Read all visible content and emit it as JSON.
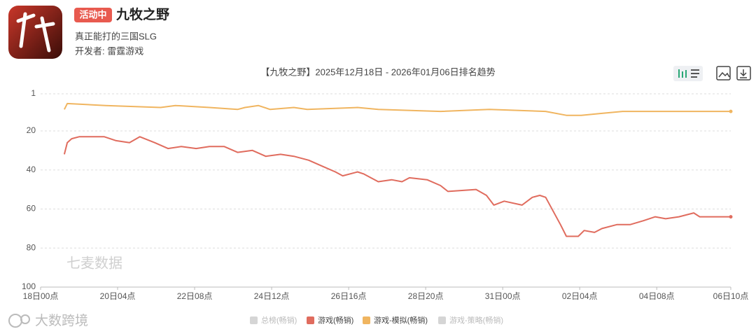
{
  "header": {
    "badge": "活动中",
    "app_name": "九牧之野",
    "slogan": "真正能打的三国SLG",
    "developer": "开发者: 雷霆游戏"
  },
  "chart_data": {
    "type": "line",
    "title": "【九牧之野】2025年12月18日 - 2026年01月06日排名趋势",
    "y_inverted": true,
    "grid": true,
    "xlim": [
      0,
      466
    ],
    "ylim": [
      1,
      100
    ],
    "xticks": [
      {
        "value": 0,
        "label": "18日00点"
      },
      {
        "value": 52,
        "label": "20日04点"
      },
      {
        "value": 104,
        "label": "22日08点"
      },
      {
        "value": 156,
        "label": "24日12点"
      },
      {
        "value": 208,
        "label": "26日16点"
      },
      {
        "value": 260,
        "label": "28日20点"
      },
      {
        "value": 312,
        "label": "31日00点"
      },
      {
        "value": 364,
        "label": "02日04点"
      },
      {
        "value": 416,
        "label": "04日08点"
      },
      {
        "value": 466,
        "label": "06日10点"
      }
    ],
    "yticks": [
      1,
      20,
      40,
      60,
      80,
      100
    ],
    "series": [
      {
        "name": "总榜(畅销)",
        "color": "#cccccc",
        "hidden": true
      },
      {
        "name": "游戏(畅销)",
        "color": "#e06c5e",
        "x": [
          16,
          18,
          21,
          26,
          43,
          51,
          60,
          67,
          77,
          86,
          95,
          105,
          114,
          124,
          133,
          143,
          152,
          162,
          171,
          181,
          190,
          199,
          204,
          214,
          218,
          228,
          237,
          244,
          249,
          261,
          270,
          275,
          294,
          301,
          306,
          313,
          325,
          332,
          337,
          341,
          346,
          351,
          355,
          363,
          367,
          374,
          379,
          389,
          398,
          407,
          415,
          422,
          431,
          441,
          445,
          466
        ],
        "values": [
          32,
          26,
          24,
          23,
          23,
          25,
          26,
          23,
          26,
          29,
          28,
          29,
          28,
          28,
          31,
          30,
          33,
          32,
          33,
          35,
          38,
          41,
          43,
          41,
          42,
          46,
          45,
          46,
          44,
          45,
          48,
          51,
          50,
          53,
          58,
          56,
          58,
          54,
          53,
          54,
          61,
          68,
          74,
          74,
          71,
          72,
          70,
          68,
          68,
          66,
          64,
          65,
          64,
          62,
          64,
          64
        ]
      },
      {
        "name": "游戏-模拟(畅销)",
        "color": "#f0b560",
        "x": [
          16,
          18,
          44,
          81,
          91,
          114,
          133,
          138,
          147,
          155,
          171,
          180,
          214,
          228,
          270,
          303,
          341,
          355,
          365,
          379,
          393,
          466
        ],
        "values": [
          9,
          6,
          7,
          8,
          7,
          8,
          9,
          8,
          7,
          9,
          8,
          9,
          8,
          9,
          10,
          9,
          10,
          12,
          12,
          11,
          10,
          10
        ]
      },
      {
        "name": "游戏-策略(畅销)",
        "color": "#cccccc",
        "hidden": true
      }
    ],
    "watermarks": [
      "七麦数据",
      "大数跨境"
    ]
  }
}
